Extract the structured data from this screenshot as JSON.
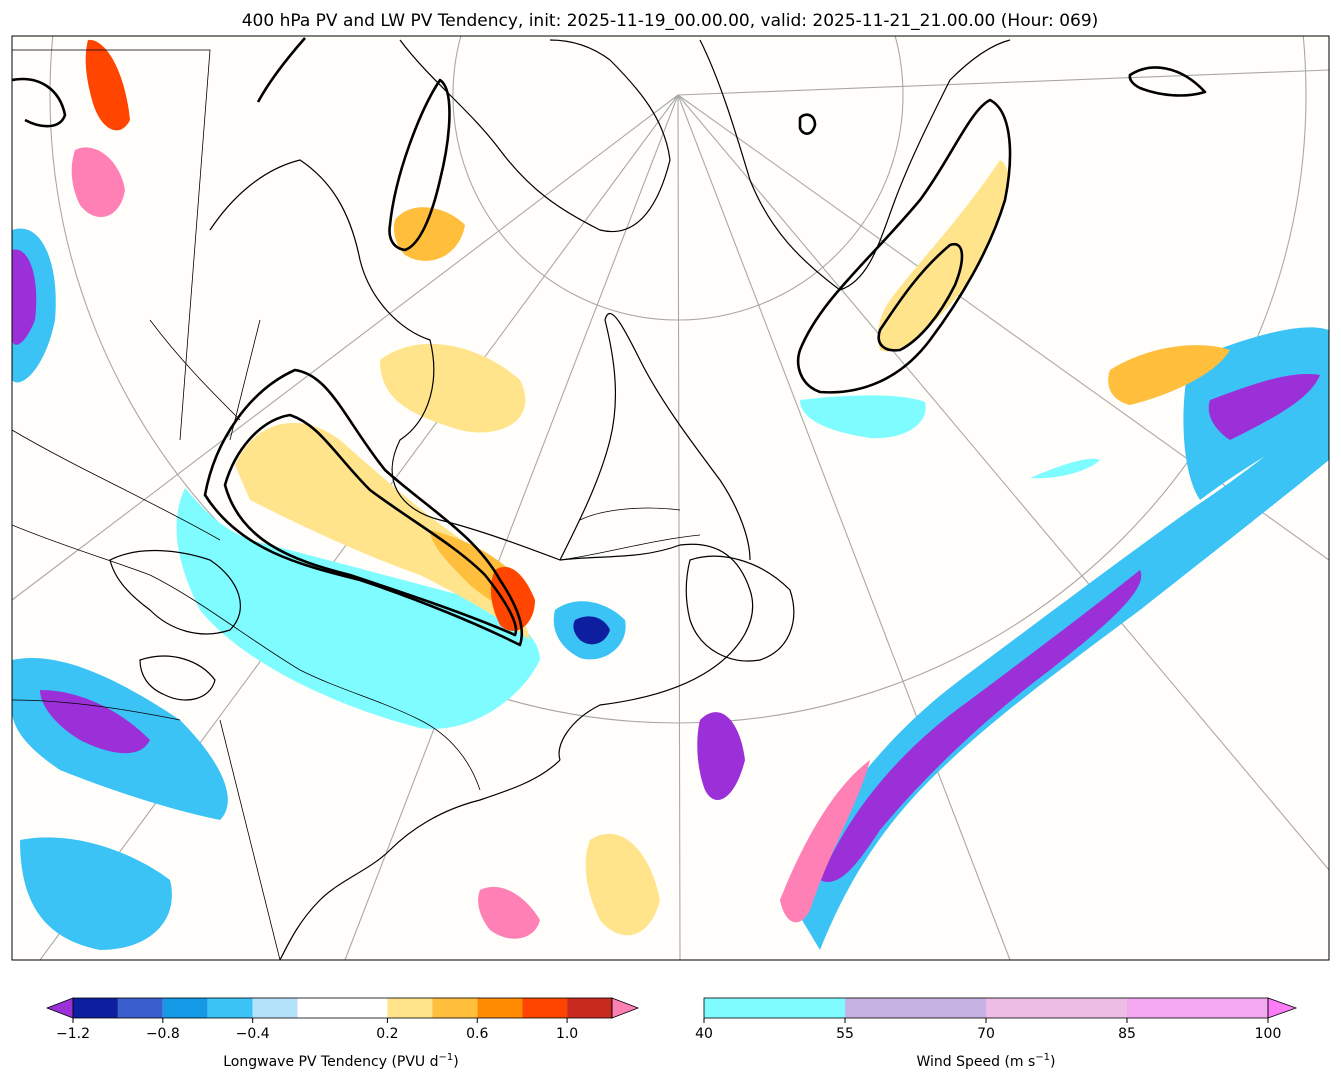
{
  "chart_data": {
    "type": "heatmap",
    "title": "400 hPa PV and LW PV Tendency, init: 2025-11-19_00.00.00, valid: 2025-11-21_21.00.00 (Hour: 069)",
    "map": {
      "projection": "polar-stereographic",
      "region": "Northeastern North America, Greenland and North Atlantic",
      "features": [
        "coastlines",
        "country borders",
        "state/province borders",
        "lat/lon gridlines",
        "PV contours (black)"
      ]
    },
    "colorbars": [
      {
        "name": "pv-tendency",
        "label": "Longwave PV Tendency (PVU d",
        "label_sup": "−1",
        "label_end": ")",
        "extend": "both",
        "levels": [
          -1.2,
          -1.0,
          -0.8,
          -0.6,
          -0.4,
          -0.2,
          0.2,
          0.4,
          0.6,
          0.8,
          1.0,
          1.2
        ],
        "tick_labels": [
          "−1.2",
          "−0.8",
          "−0.4",
          "0.2",
          "0.6",
          "1.0"
        ],
        "colors": [
          "#0d1f9e",
          "#3a5fcd",
          "#1399e6",
          "#3cc3f5",
          "#b4e2fb",
          "#ffffff",
          "#ffe48c",
          "#ffbe3c",
          "#ff8c00",
          "#ff4500",
          "#c82a1e"
        ],
        "under_color": "#9b30d9",
        "over_color": "#ff80b4"
      },
      {
        "name": "wind-speed",
        "label": "Wind Speed (m s",
        "label_sup": "−1",
        "label_end": ")",
        "extend": "max",
        "levels": [
          40,
          55,
          70,
          85,
          100
        ],
        "tick_labels": [
          "40",
          "55",
          "70",
          "85",
          "100"
        ],
        "colors": [
          "#7ffcff",
          "#c7b3e3",
          "#edbde6",
          "#f5a8f2"
        ],
        "over_color": "#ff7cf9"
      }
    ]
  }
}
